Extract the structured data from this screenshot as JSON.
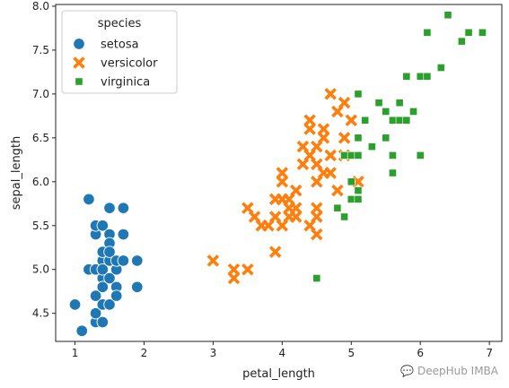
{
  "chart_data": {
    "type": "scatter",
    "xlabel": "petal_length",
    "ylabel": "sepal_length",
    "xlim": [
      0.72,
      7.18
    ],
    "ylim": [
      4.18,
      8.02
    ],
    "xticks": [
      1,
      2,
      3,
      4,
      5,
      6,
      7
    ],
    "yticks": [
      4.5,
      5.0,
      5.5,
      6.0,
      6.5,
      7.0,
      7.5,
      8.0
    ],
    "grid": false,
    "legend": {
      "title": "species",
      "placement": "top-left"
    },
    "series": [
      {
        "name": "setosa",
        "marker": "circle",
        "color": "#1f77b4",
        "points": [
          [
            1.0,
            4.6
          ],
          [
            1.1,
            4.3
          ],
          [
            1.2,
            5.8
          ],
          [
            1.2,
            5.0
          ],
          [
            1.3,
            5.4
          ],
          [
            1.3,
            5.5
          ],
          [
            1.3,
            4.4
          ],
          [
            1.3,
            4.5
          ],
          [
            1.3,
            5.0
          ],
          [
            1.3,
            4.7
          ],
          [
            1.4,
            5.1
          ],
          [
            1.4,
            4.9
          ],
          [
            1.4,
            5.0
          ],
          [
            1.4,
            4.4
          ],
          [
            1.4,
            4.6
          ],
          [
            1.4,
            5.2
          ],
          [
            1.4,
            5.5
          ],
          [
            1.4,
            4.8
          ],
          [
            1.5,
            4.6
          ],
          [
            1.5,
            5.4
          ],
          [
            1.5,
            4.9
          ],
          [
            1.5,
            5.7
          ],
          [
            1.5,
            5.1
          ],
          [
            1.5,
            5.3
          ],
          [
            1.5,
            5.2
          ],
          [
            1.6,
            4.8
          ],
          [
            1.6,
            5.0
          ],
          [
            1.6,
            4.7
          ],
          [
            1.6,
            5.1
          ],
          [
            1.7,
            5.7
          ],
          [
            1.7,
            5.4
          ],
          [
            1.7,
            5.1
          ],
          [
            1.9,
            5.1
          ],
          [
            1.9,
            4.8
          ]
        ]
      },
      {
        "name": "versicolor",
        "marker": "x",
        "color": "#ff7f0e",
        "points": [
          [
            3.0,
            5.1
          ],
          [
            3.3,
            4.9
          ],
          [
            3.3,
            5.0
          ],
          [
            3.5,
            5.7
          ],
          [
            3.5,
            5.0
          ],
          [
            3.6,
            5.6
          ],
          [
            3.7,
            5.5
          ],
          [
            3.8,
            5.5
          ],
          [
            3.9,
            5.8
          ],
          [
            3.9,
            5.2
          ],
          [
            3.9,
            5.6
          ],
          [
            4.0,
            6.1
          ],
          [
            4.0,
            5.8
          ],
          [
            4.0,
            5.5
          ],
          [
            4.0,
            6.0
          ],
          [
            4.1,
            5.7
          ],
          [
            4.1,
            5.8
          ],
          [
            4.1,
            5.6
          ],
          [
            4.2,
            5.9
          ],
          [
            4.2,
            5.7
          ],
          [
            4.2,
            5.6
          ],
          [
            4.3,
            6.4
          ],
          [
            4.3,
            6.2
          ],
          [
            4.4,
            6.7
          ],
          [
            4.4,
            6.6
          ],
          [
            4.4,
            6.3
          ],
          [
            4.4,
            5.5
          ],
          [
            4.5,
            6.4
          ],
          [
            4.5,
            5.7
          ],
          [
            4.5,
            6.2
          ],
          [
            4.5,
            6.0
          ],
          [
            4.5,
            5.6
          ],
          [
            4.5,
            5.4
          ],
          [
            4.6,
            6.5
          ],
          [
            4.6,
            6.6
          ],
          [
            4.6,
            6.1
          ],
          [
            4.7,
            7.0
          ],
          [
            4.7,
            6.3
          ],
          [
            4.7,
            6.1
          ],
          [
            4.8,
            6.8
          ],
          [
            4.8,
            5.9
          ],
          [
            4.9,
            6.9
          ],
          [
            4.9,
            6.3
          ],
          [
            4.9,
            6.5
          ],
          [
            5.0,
            6.7
          ],
          [
            5.1,
            6.0
          ]
        ]
      },
      {
        "name": "virginica",
        "marker": "square",
        "color": "#2ca02c",
        "points": [
          [
            4.5,
            4.9
          ],
          [
            4.8,
            5.7
          ],
          [
            4.9,
            6.3
          ],
          [
            4.9,
            5.6
          ],
          [
            5.0,
            6.3
          ],
          [
            5.0,
            5.8
          ],
          [
            5.0,
            6.0
          ],
          [
            5.1,
            7.0
          ],
          [
            5.1,
            6.5
          ],
          [
            5.1,
            6.3
          ],
          [
            5.1,
            5.9
          ],
          [
            5.1,
            5.8
          ],
          [
            5.2,
            6.7
          ],
          [
            5.3,
            6.4
          ],
          [
            5.4,
            6.9
          ],
          [
            5.5,
            6.8
          ],
          [
            5.5,
            6.5
          ],
          [
            5.6,
            6.3
          ],
          [
            5.6,
            6.7
          ],
          [
            5.6,
            6.1
          ],
          [
            5.7,
            6.7
          ],
          [
            5.7,
            6.9
          ],
          [
            5.8,
            7.2
          ],
          [
            5.8,
            6.7
          ],
          [
            5.9,
            6.8
          ],
          [
            6.0,
            7.2
          ],
          [
            6.0,
            6.3
          ],
          [
            6.1,
            7.7
          ],
          [
            6.1,
            7.2
          ],
          [
            6.3,
            7.3
          ],
          [
            6.4,
            7.9
          ],
          [
            6.6,
            7.6
          ],
          [
            6.7,
            7.7
          ],
          [
            6.9,
            7.7
          ]
        ]
      }
    ]
  },
  "watermark": "DeepHub IMBA"
}
